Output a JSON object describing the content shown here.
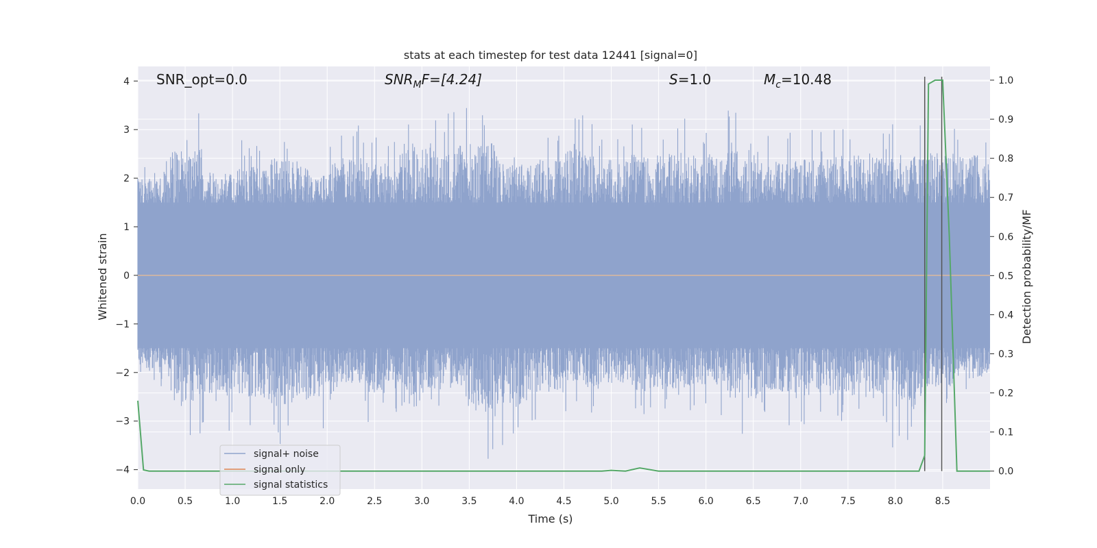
{
  "chart_data": {
    "type": "line",
    "title": "stats at each timestep for test data 12441 [signal=0]",
    "xlabel": "Time (s)",
    "ylabel": "Whitened strain",
    "y2label": "Detection probability/MF",
    "xlim": [
      0.0,
      9.0
    ],
    "ylim": [
      -4.4,
      4.3
    ],
    "y2lim": [
      -0.046,
      1.035
    ],
    "xticks": [
      "0.0",
      "0.5",
      "1.0",
      "1.5",
      "2.0",
      "2.5",
      "3.0",
      "3.5",
      "4.0",
      "4.5",
      "5.0",
      "5.5",
      "6.0",
      "6.5",
      "7.0",
      "7.5",
      "8.0",
      "8.5"
    ],
    "yticks": [
      "4",
      "3",
      "2",
      "1",
      "0",
      "−1",
      "−2",
      "−3",
      "−4"
    ],
    "y2ticks": [
      "1.0",
      "0.9",
      "0.8",
      "0.7",
      "0.6",
      "0.5",
      "0.4",
      "0.3",
      "0.2",
      "0.1",
      "0.0"
    ],
    "grid": true,
    "legend_position": "lower-left",
    "annotations": {
      "snr_opt": "SNR_opt=0.0",
      "snr_mf_main": "SNR",
      "snr_mf_sub": "M",
      "snr_mf_rest": "F=[4.24]",
      "s_main": "S",
      "s_rest": "=1.0",
      "mc_main": "M",
      "mc_sub": "c",
      "mc_rest": "=10.48"
    },
    "series": [
      {
        "name": "signal+ noise",
        "color": "#8fa3cc",
        "description_values": "whitened strain noise, roughly Gaussian with amplitude between about -3.8 and 3.6",
        "envelope_peaks": [
          2.4,
          3.4,
          2.6,
          2.8,
          3.1,
          2.7,
          3.1,
          2.9,
          3.6,
          3.5,
          3.6,
          2.9,
          3.0,
          3.4,
          3.0,
          3.2,
          3.3,
          3.1,
          3.4,
          3.0,
          3.1,
          3.2,
          3.2,
          3.2,
          3.3,
          3.2
        ],
        "envelope_troughs": [
          -2.4,
          -3.4,
          -3.2,
          -3.3,
          -3.5,
          -3.3,
          -2.9,
          -3.1,
          -3.6,
          -3.0,
          -3.8,
          -3.5,
          -3.1,
          -2.9,
          -2.8,
          -3.1,
          -3.0,
          -2.9,
          -3.3,
          -3.1,
          -3.2,
          -3.2,
          -3.2,
          -3.6,
          -2.9,
          -2.6
        ]
      },
      {
        "name": "signal only",
        "color": "#dd8452",
        "x": [
          0.0,
          9.0
        ],
        "y": [
          0.0,
          0.0
        ]
      },
      {
        "name": "signal statistics",
        "color": "#55a868",
        "axis": "right",
        "x": [
          0.0,
          0.06,
          0.12,
          0.5,
          1.0,
          2.0,
          3.0,
          4.0,
          4.5,
          4.9,
          5.0,
          5.15,
          5.3,
          5.5,
          6.0,
          7.0,
          8.0,
          8.25,
          8.31,
          8.35,
          8.42,
          8.5,
          8.57,
          8.65,
          9.0
        ],
        "y": [
          0.18,
          0.003,
          0.0,
          0.0,
          0.0,
          0.0,
          0.0,
          0.0,
          0.0,
          0.0,
          0.002,
          0.0,
          0.008,
          0.0,
          0.0,
          0.0,
          0.0,
          0.0,
          0.04,
          0.99,
          1.0,
          1.0,
          0.6,
          0.0,
          0.0
        ]
      }
    ],
    "vlines": [
      8.31,
      8.49
    ]
  }
}
